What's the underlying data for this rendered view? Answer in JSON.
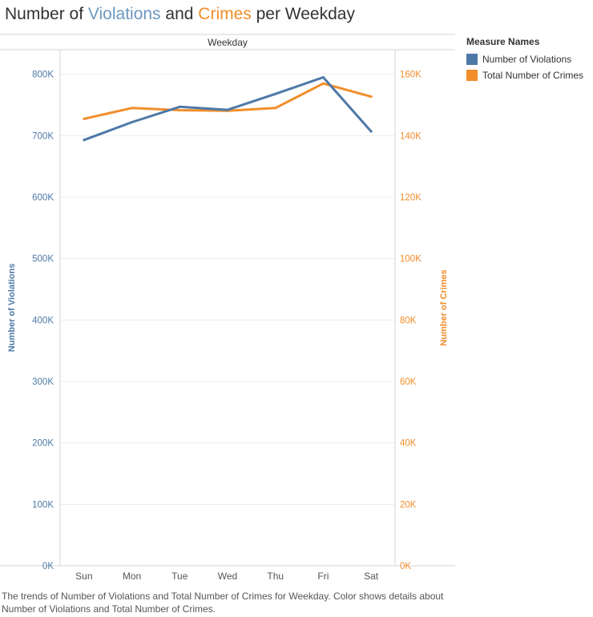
{
  "title": {
    "part1": "Number of ",
    "part2": "Violations",
    "part3": " and ",
    "part4": "Crimes",
    "part5": " per Weekday"
  },
  "legend": {
    "title": "Measure Names",
    "items": [
      {
        "label": "Number of Violations",
        "color": "#4e79a7"
      },
      {
        "label": "Total Number of Crimes",
        "color": "#f28e2b"
      }
    ]
  },
  "caption": "The trends of Number of Violations and Total Number of Crimes for Weekday.  Color shows details about Number of Violations and Total Number of Crimes.",
  "chart_data": {
    "type": "line",
    "header": "Weekday",
    "categories": [
      "Sun",
      "Mon",
      "Tue",
      "Wed",
      "Thu",
      "Fri",
      "Sat"
    ],
    "series": [
      {
        "name": "Number of Violations",
        "axis": "left",
        "color": "#4e79a7",
        "values": [
          693000,
          722000,
          747000,
          742000,
          768000,
          795000,
          707000
        ]
      },
      {
        "name": "Total Number of Crimes",
        "axis": "right",
        "color": "#f28e2b",
        "values": [
          145500,
          149000,
          148300,
          148100,
          149000,
          157000,
          152700
        ]
      }
    ],
    "y_left": {
      "label": "Number of Violations",
      "lim": [
        0,
        840000
      ],
      "ticks": [
        0,
        100000,
        200000,
        300000,
        400000,
        500000,
        600000,
        700000,
        800000
      ],
      "tick_labels": [
        "0K",
        "100K",
        "200K",
        "300K",
        "400K",
        "500K",
        "600K",
        "700K",
        "800K"
      ]
    },
    "y_right": {
      "label": "Number of Crimes",
      "lim": [
        0,
        168000
      ],
      "ticks": [
        0,
        20000,
        40000,
        60000,
        80000,
        100000,
        120000,
        140000,
        160000
      ],
      "tick_labels": [
        "0K",
        "20K",
        "40K",
        "60K",
        "80K",
        "100K",
        "120K",
        "140K",
        "160K"
      ]
    },
    "grid": true,
    "legend_position": "right"
  }
}
